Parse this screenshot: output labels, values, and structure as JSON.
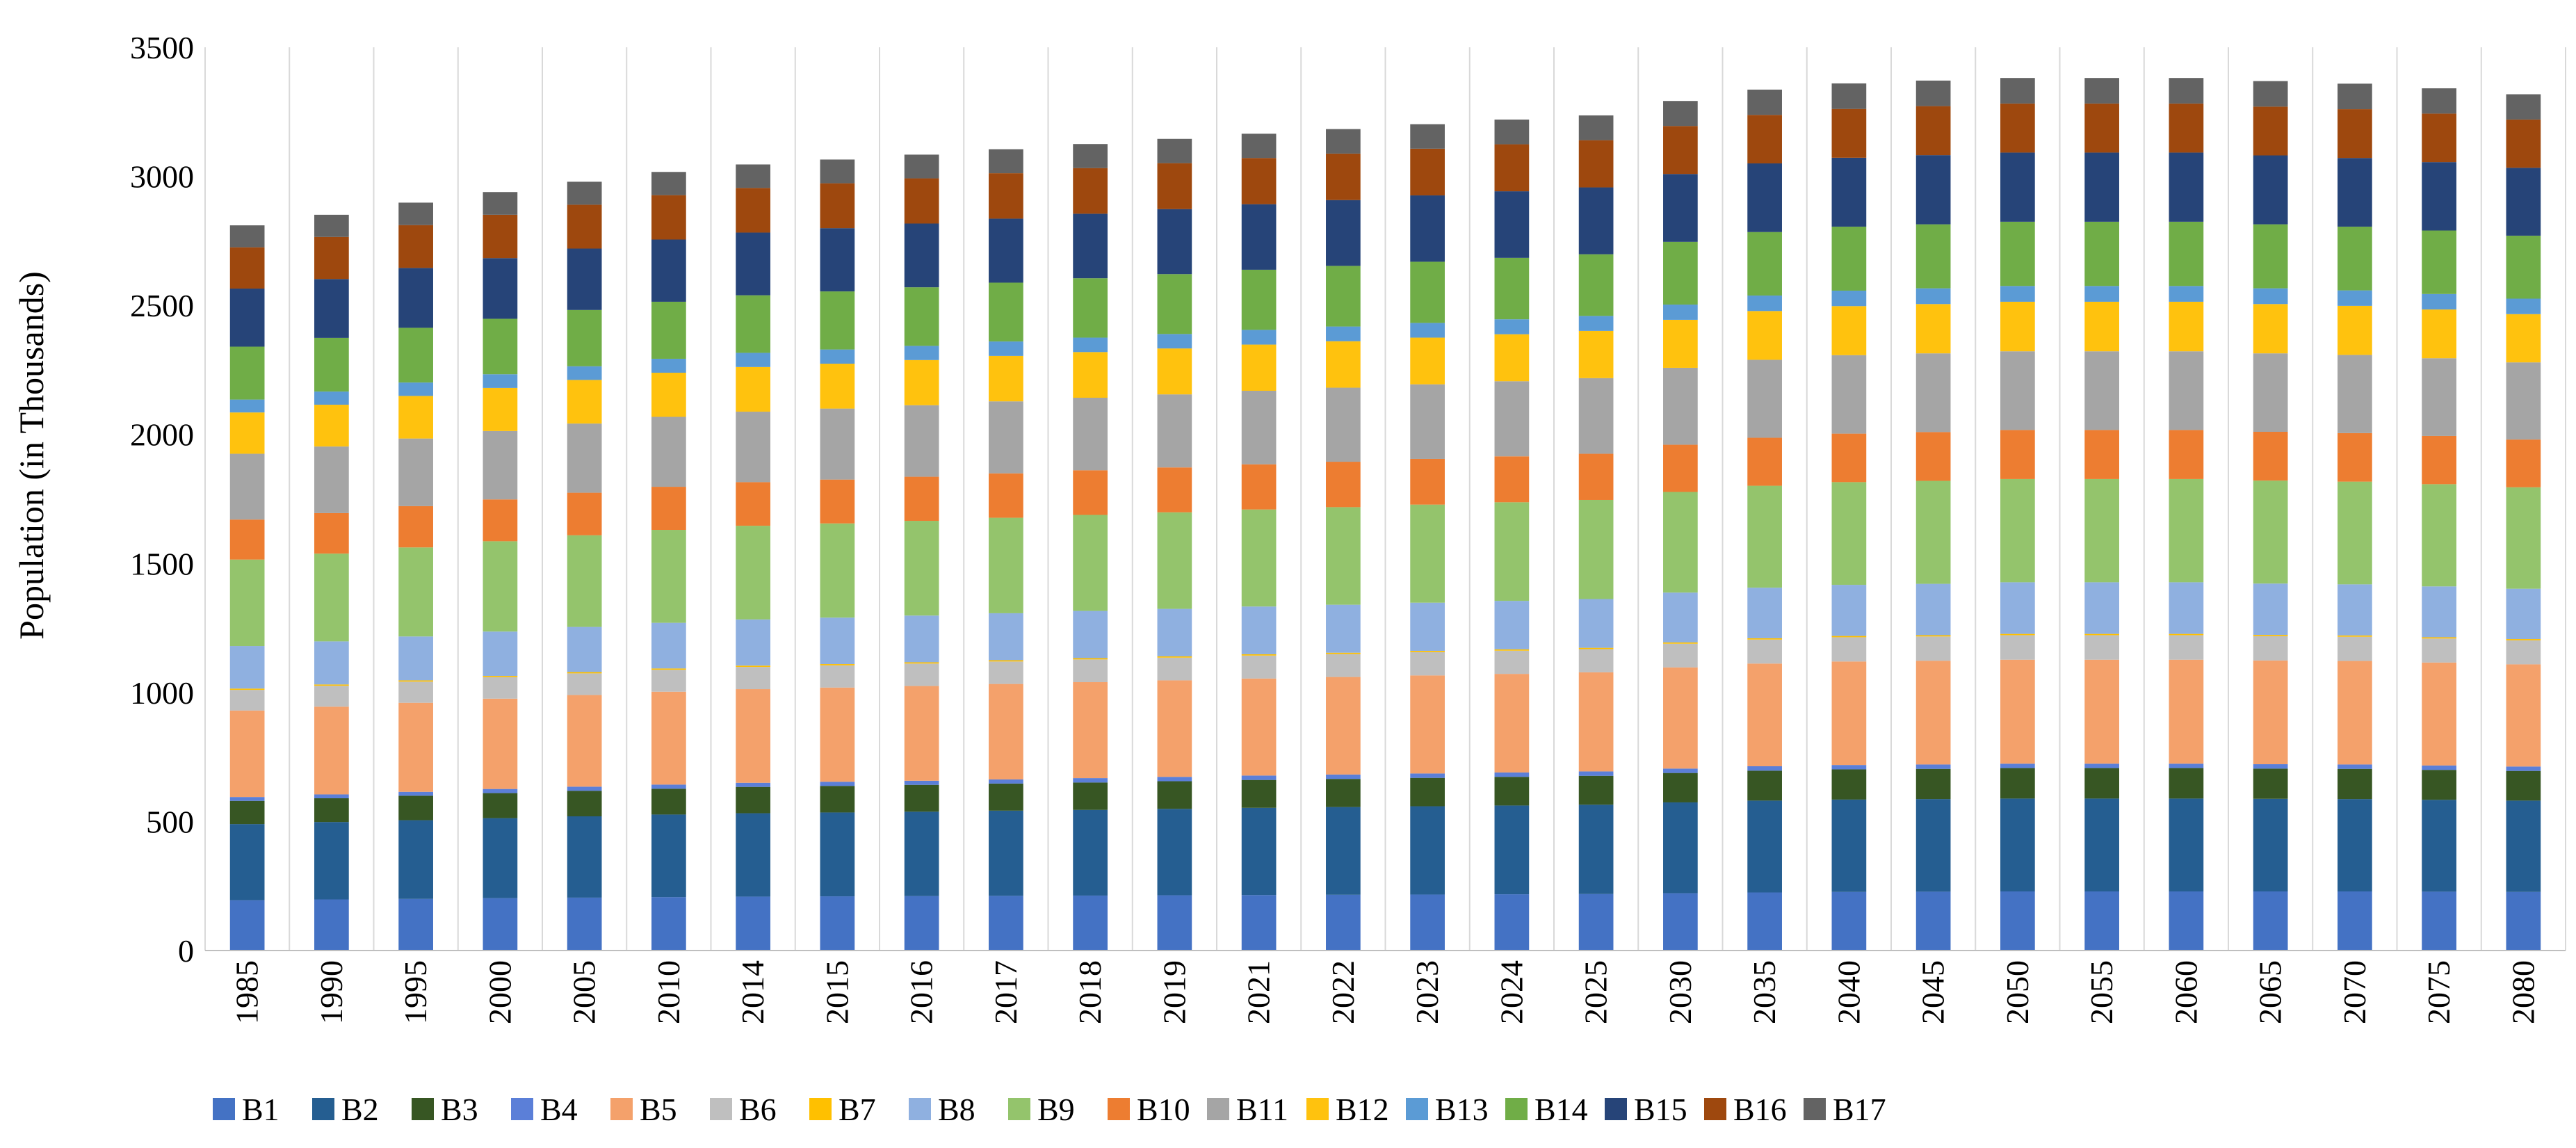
{
  "chart_data": {
    "type": "bar",
    "stacked": true,
    "title": "",
    "xlabel": "",
    "ylabel": "Population (in Thousands)",
    "ylim": [
      0,
      3500
    ],
    "yticks": [
      0,
      500,
      1000,
      1500,
      2000,
      2500,
      3000,
      3500
    ],
    "grid": "vertical lines between categories",
    "legend": "bottom",
    "categories": [
      "1985",
      "1990",
      "1995",
      "2000",
      "2005",
      "2010",
      "2014",
      "2015",
      "2016",
      "2017",
      "2018",
      "2019",
      "2021",
      "2022",
      "2023",
      "2024",
      "2025",
      "2030",
      "2035",
      "2040",
      "2045",
      "2050",
      "2055",
      "2060",
      "2065",
      "2070",
      "2075",
      "2080"
    ],
    "series": [
      {
        "name": "B1",
        "color": "#4472C4",
        "values": [
          195,
          198,
          200,
          203,
          205,
          207,
          209,
          210,
          211,
          212,
          213,
          214,
          215,
          216,
          217,
          218,
          219,
          222,
          225,
          227,
          228,
          229,
          229,
          229,
          229,
          229,
          228,
          227
        ]
      },
      {
        "name": "B2",
        "color": "#255E91",
        "values": [
          295,
          300,
          305,
          310,
          315,
          320,
          323,
          325,
          327,
          330,
          332,
          335,
          338,
          340,
          342,
          344,
          346,
          352,
          356,
          358,
          359,
          360,
          360,
          360,
          359,
          358,
          356,
          354
        ]
      },
      {
        "name": "B3",
        "color": "#375623",
        "values": [
          90,
          92,
          95,
          97,
          99,
          100,
          102,
          103,
          104,
          105,
          106,
          107,
          108,
          109,
          110,
          111,
          112,
          114,
          116,
          117,
          117,
          118,
          118,
          118,
          117,
          117,
          116,
          115
        ]
      },
      {
        "name": "B4",
        "color": "#5B7FD8",
        "values": [
          15,
          15,
          15,
          16,
          16,
          16,
          16,
          16,
          16,
          16,
          17,
          17,
          17,
          17,
          17,
          17,
          17,
          17,
          17,
          17,
          17,
          17,
          17,
          17,
          17,
          17,
          17,
          17
        ]
      },
      {
        "name": "B5",
        "color": "#F4A16B",
        "values": [
          335,
          340,
          345,
          350,
          355,
          360,
          363,
          365,
          367,
          370,
          372,
          374,
          376,
          378,
          380,
          382,
          384,
          392,
          398,
          401,
          402,
          403,
          403,
          403,
          402,
          401,
          399,
          396
        ]
      },
      {
        "name": "B6",
        "color": "#BFBFBF",
        "values": [
          80,
          81,
          82,
          83,
          84,
          85,
          86,
          86,
          87,
          87,
          88,
          88,
          89,
          89,
          90,
          90,
          90,
          92,
          93,
          94,
          94,
          95,
          95,
          95,
          94,
          94,
          93,
          93
        ]
      },
      {
        "name": "B7",
        "color": "#FFC000",
        "values": [
          5,
          5,
          5,
          5,
          5,
          5,
          5,
          5,
          5,
          5,
          5,
          5,
          5,
          5,
          5,
          5,
          5,
          5,
          5,
          5,
          5,
          5,
          5,
          5,
          5,
          5,
          5,
          5
        ]
      },
      {
        "name": "B8",
        "color": "#8FB0E0",
        "values": [
          165,
          167,
          170,
          172,
          175,
          177,
          179,
          180,
          181,
          182,
          183,
          184,
          185,
          186,
          187,
          188,
          189,
          193,
          196,
          198,
          199,
          200,
          200,
          200,
          199,
          198,
          197,
          195
        ]
      },
      {
        "name": "B9",
        "color": "#94C46C",
        "values": [
          335,
          340,
          345,
          350,
          355,
          360,
          363,
          365,
          367,
          370,
          372,
          374,
          376,
          378,
          380,
          382,
          384,
          390,
          395,
          398,
          399,
          400,
          400,
          400,
          399,
          398,
          396,
          393
        ]
      },
      {
        "name": "B10",
        "color": "#ED7D31",
        "values": [
          155,
          157,
          160,
          162,
          165,
          167,
          169,
          170,
          171,
          172,
          173,
          174,
          175,
          176,
          177,
          178,
          179,
          183,
          186,
          188,
          189,
          190,
          190,
          190,
          189,
          188,
          187,
          185
        ]
      },
      {
        "name": "B11",
        "color": "#A5A5A5",
        "values": [
          255,
          258,
          262,
          265,
          268,
          271,
          273,
          275,
          277,
          279,
          281,
          283,
          285,
          287,
          289,
          291,
          293,
          298,
          302,
          304,
          305,
          305,
          305,
          305,
          304,
          303,
          301,
          299
        ]
      },
      {
        "name": "B12",
        "color": "#FFC20E",
        "values": [
          160,
          162,
          165,
          167,
          169,
          171,
          173,
          174,
          175,
          176,
          177,
          178,
          179,
          180,
          181,
          182,
          183,
          186,
          189,
          190,
          191,
          192,
          192,
          192,
          191,
          190,
          189,
          187
        ]
      },
      {
        "name": "B13",
        "color": "#5B9BD5",
        "values": [
          50,
          51,
          52,
          53,
          53,
          54,
          55,
          55,
          55,
          56,
          56,
          56,
          57,
          57,
          57,
          58,
          58,
          59,
          60,
          60,
          61,
          61,
          61,
          61,
          61,
          60,
          60,
          60
        ]
      },
      {
        "name": "B14",
        "color": "#70AD47",
        "values": [
          205,
          208,
          212,
          215,
          218,
          221,
          223,
          225,
          227,
          228,
          230,
          232,
          233,
          235,
          237,
          238,
          239,
          243,
          246,
          248,
          248,
          249,
          249,
          249,
          248,
          247,
          246,
          244
        ]
      },
      {
        "name": "B15",
        "color": "#264478",
        "values": [
          225,
          228,
          232,
          235,
          238,
          241,
          243,
          245,
          247,
          248,
          250,
          252,
          254,
          255,
          257,
          258,
          259,
          263,
          266,
          267,
          268,
          268,
          268,
          268,
          267,
          266,
          265,
          263
        ]
      },
      {
        "name": "B16",
        "color": "#9E480E",
        "values": [
          160,
          163,
          166,
          168,
          170,
          172,
          173,
          174,
          175,
          176,
          177,
          178,
          179,
          180,
          181,
          182,
          183,
          186,
          188,
          189,
          190,
          190,
          190,
          190,
          189,
          189,
          188,
          187
        ]
      },
      {
        "name": "B17",
        "color": "#636363",
        "values": [
          85,
          86,
          87,
          88,
          89,
          90,
          91,
          92,
          92,
          93,
          93,
          94,
          94,
          95,
          95,
          96,
          96,
          97,
          98,
          99,
          99,
          99,
          99,
          99,
          99,
          99,
          98,
          98
        ]
      }
    ]
  }
}
